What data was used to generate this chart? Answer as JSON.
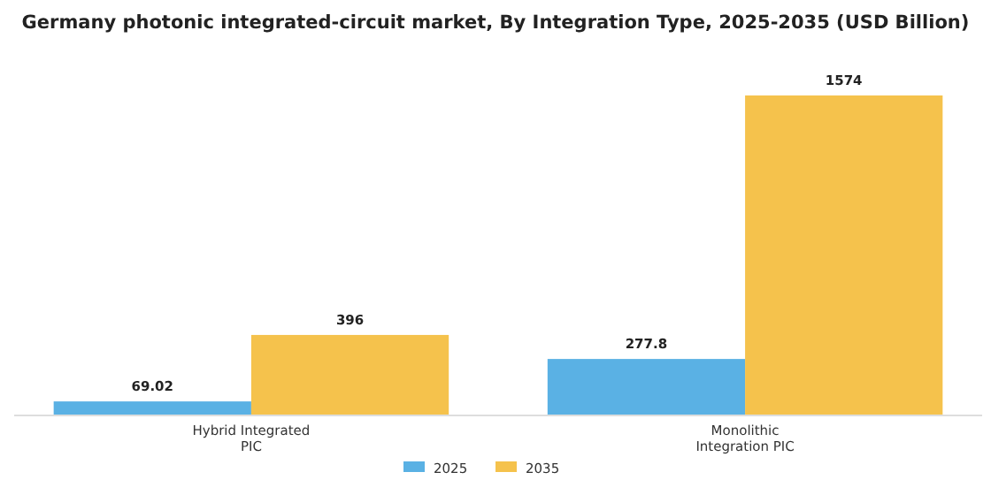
{
  "chart_data": {
    "type": "bar",
    "title": "Germany photonic integrated-circuit market, By Integration Type, 2025-2035 (USD Billion)",
    "categories": [
      "Hybrid Integrated PIC",
      "Monolithic Integration PIC"
    ],
    "series": [
      {
        "name": "2025",
        "color": "#5ab1e4",
        "values": [
          69.02,
          277.8
        ]
      },
      {
        "name": "2035",
        "color": "#f5c24c",
        "values": [
          396,
          1574
        ]
      }
    ],
    "data_labels": true,
    "legend": "bottom",
    "grid": false
  }
}
